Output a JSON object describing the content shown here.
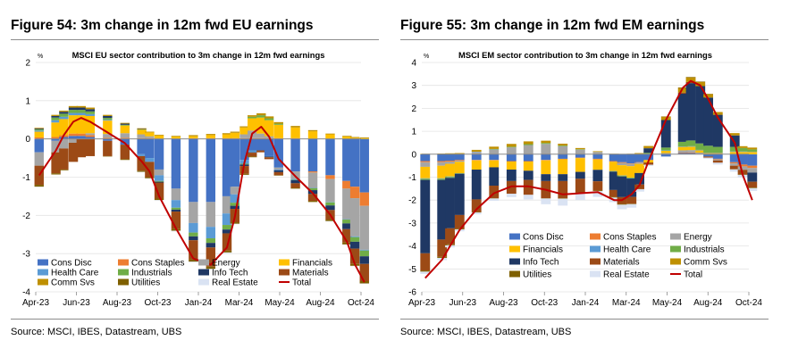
{
  "colors": {
    "Cons Disc": "#4472c4",
    "Cons Staples": "#ed7d31",
    "Energy": "#a5a5a5",
    "Financials": "#ffc000",
    "Health Care": "#5b9bd5",
    "Industrials": "#70ad47",
    "Info Tech": "#1f3864",
    "Materials": "#9c4a16",
    "Comm Svs": "#bf9000",
    "Utilities": "#7f6000",
    "Real Estate": "#dae3f3",
    "Total": "#c00000"
  },
  "chart_data": [
    {
      "type": "bar",
      "figure_title": "Figure 54: 3m change in 12m fwd EU earnings",
      "title": "MSCI EU sector contribution to 3m change in 12m fwd earnings",
      "ylabel": "%",
      "ylim": [
        -4,
        2
      ],
      "yticks": [
        2,
        1,
        0,
        -1,
        -2,
        -3,
        -4
      ],
      "x_start": "Apr-23",
      "x_end": "Nov-24",
      "xtick_labels": [
        "Apr-23",
        "Jun-23",
        "Aug-23",
        "Oct-23",
        "Jan-24",
        "Mar-24",
        "May-24",
        "Aug-24",
        "Oct-24"
      ],
      "legend_rows": [
        [
          "Cons Disc",
          "Cons Staples",
          "Energy",
          "Financials"
        ],
        [
          "Health Care",
          "Industrials",
          "Info Tech",
          "Materials"
        ],
        [
          "Comm Svs",
          "Utilities",
          "Real Estate",
          "Total"
        ]
      ],
      "source": "Source: MSCI, IBES, Datastream, UBS",
      "x": [
        "2023-04-07",
        "2023-05-07",
        "2023-05-21",
        "2023-06-07",
        "2023-06-21",
        "2023-07-07",
        "2023-08-07",
        "2023-09-07",
        "2023-10-07",
        "2023-10-21",
        "2023-11-07",
        "2023-12-07",
        "2024-01-07",
        "2024-02-07",
        "2024-03-07",
        "2024-03-21",
        "2024-04-07",
        "2024-04-21",
        "2024-05-07",
        "2024-05-21",
        "2024-06-07",
        "2024-07-07",
        "2024-08-07",
        "2024-09-07",
        "2024-10-07",
        "2024-10-21",
        "2024-11-07"
      ],
      "series": [
        {
          "name": "Cons Disc",
          "values": [
            -0.35,
            -0.05,
            0.05,
            0.08,
            0.08,
            0.05,
            -0.05,
            -0.15,
            -0.4,
            -0.5,
            -0.8,
            -1.3,
            -1.65,
            -1.65,
            -1.5,
            -1.25,
            -0.55,
            -0.3,
            -0.3,
            -0.45,
            -0.75,
            -0.85,
            -0.85,
            -0.95,
            -1.1,
            -1.25,
            -1.4
          ]
        },
        {
          "name": "Cons Staples",
          "values": [
            0.04,
            0.05,
            0.05,
            0.06,
            0.06,
            0.05,
            0.03,
            0.03,
            0.02,
            0.02,
            0.01,
            0.01,
            0.02,
            0.02,
            0.02,
            0.02,
            0.02,
            0.02,
            0.02,
            0.02,
            0.02,
            0.02,
            -0.03,
            -0.1,
            -0.2,
            -0.3,
            -0.35
          ]
        },
        {
          "name": "Energy",
          "values": [
            -0.35,
            -0.3,
            -0.25,
            -0.1,
            0.0,
            0.05,
            0.1,
            0.12,
            0.1,
            0.05,
            -0.15,
            -0.3,
            -0.55,
            -0.65,
            -0.45,
            -0.2,
            0.1,
            0.2,
            0.12,
            0.05,
            -0.05,
            -0.2,
            -0.4,
            -0.6,
            -0.8,
            -1.0,
            -1.15
          ]
        },
        {
          "name": "Financials",
          "values": [
            0.15,
            0.38,
            0.42,
            0.48,
            0.48,
            0.45,
            0.35,
            0.2,
            0.12,
            0.1,
            0.08,
            0.05,
            0.05,
            0.08,
            0.1,
            0.14,
            0.18,
            0.32,
            0.42,
            0.42,
            0.35,
            0.28,
            0.2,
            0.12,
            0.06,
            0.03,
            0.02
          ]
        },
        {
          "name": "Health Care",
          "values": [
            0.03,
            0.06,
            0.06,
            0.06,
            0.06,
            0.05,
            0.02,
            0.0,
            -0.05,
            -0.1,
            -0.15,
            -0.2,
            -0.25,
            -0.3,
            -0.3,
            -0.22,
            -0.1,
            -0.05,
            0.0,
            -0.01,
            -0.02,
            -0.02,
            -0.01,
            -0.01,
            -0.01,
            -0.02,
            -0.02
          ]
        },
        {
          "name": "Industrials",
          "values": [
            0.03,
            0.07,
            0.08,
            0.08,
            0.08,
            0.07,
            0.05,
            0.02,
            0.01,
            0.0,
            -0.02,
            -0.05,
            -0.1,
            -0.12,
            -0.12,
            -0.08,
            -0.02,
            0.04,
            0.06,
            0.05,
            0.03,
            -0.01,
            -0.05,
            -0.08,
            -0.1,
            -0.12,
            -0.15
          ]
        },
        {
          "name": "Info Tech",
          "values": [
            0.02,
            0.04,
            0.05,
            0.06,
            0.06,
            0.06,
            0.05,
            0.03,
            0.01,
            0.0,
            -0.02,
            -0.05,
            -0.1,
            -0.12,
            -0.1,
            -0.08,
            -0.04,
            -0.01,
            0.0,
            -0.02,
            -0.05,
            -0.08,
            -0.1,
            -0.12,
            -0.15,
            -0.18,
            -0.2
          ]
        },
        {
          "name": "Materials",
          "values": [
            -0.5,
            -0.55,
            -0.55,
            -0.5,
            -0.48,
            -0.45,
            -0.4,
            -0.38,
            -0.38,
            -0.4,
            -0.42,
            -0.45,
            -0.5,
            -0.5,
            -0.45,
            -0.35,
            -0.2,
            -0.1,
            -0.05,
            -0.05,
            -0.08,
            -0.12,
            -0.18,
            -0.25,
            -0.35,
            -0.4,
            -0.45
          ]
        },
        {
          "name": "Comm Svs",
          "values": [
            0.02,
            0.03,
            0.03,
            0.04,
            0.04,
            0.04,
            0.03,
            0.02,
            0.02,
            0.02,
            0.02,
            0.02,
            0.03,
            0.03,
            0.03,
            0.03,
            0.03,
            0.04,
            0.05,
            0.05,
            0.04,
            0.04,
            0.03,
            0.02,
            0.02,
            0.02,
            0.02
          ]
        },
        {
          "name": "Utilities",
          "values": [
            -0.05,
            -0.03,
            -0.02,
            0.0,
            0.0,
            0.0,
            -0.01,
            -0.02,
            -0.03,
            -0.03,
            -0.04,
            -0.05,
            -0.06,
            -0.06,
            -0.05,
            -0.04,
            -0.03,
            -0.02,
            0.0,
            0.0,
            -0.01,
            -0.02,
            -0.03,
            -0.04,
            -0.05,
            -0.05,
            -0.06
          ]
        },
        {
          "name": "Real Estate",
          "values": [
            -0.01,
            0.0,
            0.0,
            0.0,
            0.0,
            0.0,
            0.0,
            0.0,
            -0.01,
            -0.01,
            -0.01,
            -0.02,
            -0.02,
            -0.02,
            -0.02,
            -0.01,
            -0.01,
            0.0,
            0.0,
            0.0,
            0.0,
            0.0,
            0.0,
            -0.01,
            -0.01,
            -0.01,
            -0.01
          ]
        }
      ],
      "total": {
        "name": "Total",
        "values": [
          -0.95,
          -0.3,
          0.1,
          0.45,
          0.55,
          0.45,
          0.17,
          -0.11,
          -0.59,
          -0.85,
          -1.5,
          -2.34,
          -3.13,
          -3.29,
          -2.84,
          -2.04,
          -0.62,
          0.14,
          0.32,
          0.06,
          -0.52,
          -0.98,
          -1.42,
          -1.98,
          -2.69,
          -3.28,
          -3.75
        ]
      }
    },
    {
      "type": "bar",
      "figure_title": "Figure 55: 3m change in 12m fwd EM earnings",
      "title": "MSCI EM sector contribution to 3m change in 12m fwd earnings",
      "ylabel": "%",
      "ylim": [
        -6,
        4
      ],
      "yticks": [
        4,
        3,
        2,
        1,
        0,
        -1,
        -2,
        -3,
        -4,
        -5,
        -6
      ],
      "x_start": "Apr-23",
      "x_end": "Nov-24",
      "xtick_labels": [
        "Apr-23",
        "Jun-23",
        "Aug-23",
        "Oct-23",
        "Jan-24",
        "Mar-24",
        "May-24",
        "Aug-24",
        "Oct-24"
      ],
      "legend_rows": [
        [
          "Cons Disc",
          "Cons Staples",
          "Energy"
        ],
        [
          "Financials",
          "Health Care",
          "Industrials"
        ],
        [
          "Info Tech",
          "Materials",
          "Comm Svs"
        ],
        [
          "Utilities",
          "Real Estate",
          "Total"
        ]
      ],
      "source": "Source: MSCI, IBES, Datastream, UBS",
      "x": [
        "2023-04-07",
        "2023-05-07",
        "2023-05-21",
        "2023-06-07",
        "2023-07-07",
        "2023-08-07",
        "2023-09-07",
        "2023-10-07",
        "2023-11-07",
        "2023-12-07",
        "2024-01-07",
        "2024-02-07",
        "2024-03-07",
        "2024-03-21",
        "2024-04-07",
        "2024-04-21",
        "2024-05-07",
        "2024-06-07",
        "2024-07-07",
        "2024-07-21",
        "2024-08-07",
        "2024-08-21",
        "2024-09-07",
        "2024-10-07",
        "2024-10-21",
        "2024-11-07"
      ],
      "series": [
        {
          "name": "Cons Disc",
          "values": [
            -0.3,
            -0.3,
            -0.28,
            -0.25,
            -0.25,
            -0.25,
            -0.3,
            -0.3,
            -0.25,
            -0.2,
            -0.15,
            -0.2,
            -0.3,
            -0.35,
            -0.4,
            -0.35,
            -0.25,
            -0.1,
            0.05,
            0.05,
            0.0,
            -0.1,
            -0.2,
            -0.35,
            -0.45,
            -0.5
          ]
        },
        {
          "name": "Cons Staples",
          "values": [
            -0.05,
            -0.05,
            -0.04,
            -0.03,
            -0.02,
            -0.02,
            -0.02,
            -0.02,
            -0.02,
            -0.02,
            -0.02,
            -0.03,
            -0.03,
            -0.03,
            -0.02,
            -0.02,
            -0.01,
            0.0,
            0.02,
            0.03,
            0.02,
            0.0,
            -0.02,
            -0.05,
            -0.08,
            -0.1
          ]
        },
        {
          "name": "Energy",
          "values": [
            -0.2,
            -0.15,
            -0.1,
            -0.05,
            0.1,
            0.2,
            0.3,
            0.4,
            0.45,
            0.35,
            0.2,
            0.1,
            0.0,
            -0.1,
            -0.1,
            -0.05,
            0.0,
            0.05,
            0.1,
            0.1,
            0.05,
            0.0,
            -0.05,
            -0.1,
            -0.15,
            -0.2
          ]
        },
        {
          "name": "Financials",
          "values": [
            -0.5,
            -0.55,
            -0.55,
            -0.5,
            -0.4,
            -0.3,
            -0.35,
            -0.4,
            -0.6,
            -0.65,
            -0.6,
            -0.45,
            -0.4,
            -0.45,
            -0.5,
            -0.4,
            -0.1,
            0.1,
            0.15,
            0.15,
            0.1,
            0.05,
            0.05,
            0.1,
            0.1,
            0.1
          ]
        },
        {
          "name": "Health Care",
          "values": [
            -0.02,
            -0.02,
            -0.02,
            0.0,
            0.01,
            0.01,
            0.0,
            0.0,
            0.0,
            0.0,
            0.0,
            0.0,
            -0.01,
            -0.01,
            -0.01,
            0.0,
            0.01,
            0.02,
            0.02,
            0.02,
            0.02,
            0.02,
            0.02,
            0.02,
            0.02,
            0.01
          ]
        },
        {
          "name": "Industrials",
          "values": [
            -0.05,
            -0.05,
            -0.04,
            -0.02,
            0.0,
            0.02,
            0.03,
            0.04,
            0.04,
            0.03,
            0.02,
            0.0,
            -0.02,
            -0.03,
            -0.03,
            0.0,
            0.05,
            0.12,
            0.2,
            0.25,
            0.28,
            0.3,
            0.25,
            0.2,
            0.15,
            0.1
          ]
        },
        {
          "name": "Info Tech",
          "values": [
            -3.2,
            -2.6,
            -2.2,
            -1.8,
            -1.3,
            -0.8,
            -0.5,
            -0.4,
            -0.3,
            -0.3,
            -0.3,
            -0.5,
            -0.8,
            -0.9,
            -0.8,
            -0.5,
            0.2,
            1.2,
            2.1,
            2.5,
            2.5,
            2.1,
            1.4,
            0.5,
            0.0,
            -0.4
          ]
        },
        {
          "name": "Materials",
          "values": [
            -0.75,
            -0.75,
            -0.7,
            -0.6,
            -0.55,
            -0.55,
            -0.55,
            -0.65,
            -0.75,
            -0.75,
            -0.6,
            -0.4,
            -0.3,
            -0.3,
            -0.3,
            -0.2,
            -0.1,
            0.0,
            0.05,
            0.05,
            0.0,
            -0.05,
            -0.1,
            -0.15,
            -0.2,
            -0.25
          ]
        },
        {
          "name": "Comm Svs",
          "values": [
            0.02,
            0.03,
            0.04,
            0.05,
            0.08,
            0.1,
            0.12,
            0.12,
            0.1,
            0.08,
            0.05,
            0.03,
            0.02,
            0.01,
            0.02,
            0.05,
            0.1,
            0.15,
            0.2,
            0.2,
            0.18,
            0.15,
            0.12,
            0.1,
            0.08,
            0.08
          ]
        },
        {
          "name": "Utilities",
          "values": [
            -0.05,
            -0.05,
            -0.04,
            -0.03,
            -0.02,
            -0.01,
            0.0,
            0.0,
            -0.01,
            -0.02,
            -0.03,
            -0.03,
            -0.03,
            -0.03,
            -0.02,
            -0.01,
            0.0,
            0.01,
            0.02,
            0.02,
            0.02,
            0.01,
            0.0,
            -0.01,
            -0.02,
            -0.03
          ]
        },
        {
          "name": "Real Estate",
          "values": [
            -0.1,
            -0.1,
            -0.09,
            -0.08,
            -0.08,
            -0.1,
            -0.15,
            -0.2,
            -0.25,
            -0.3,
            -0.3,
            -0.25,
            -0.2,
            -0.2,
            -0.15,
            -0.1,
            -0.05,
            -0.02,
            0.0,
            0.0,
            -0.02,
            -0.05,
            -0.08,
            -0.1,
            -0.12,
            -0.12
          ]
        }
      ],
      "total": {
        "name": "Total",
        "values": [
          -5.4,
          -4.6,
          -4.0,
          -3.3,
          -2.4,
          -1.7,
          -1.4,
          -1.4,
          -1.55,
          -1.75,
          -1.7,
          -1.65,
          -2.0,
          -2.0,
          -1.75,
          -1.35,
          -0.3,
          1.5,
          2.9,
          3.2,
          3.0,
          2.4,
          1.6,
          0.5,
          -0.9,
          -2.0
        ]
      }
    }
  ]
}
